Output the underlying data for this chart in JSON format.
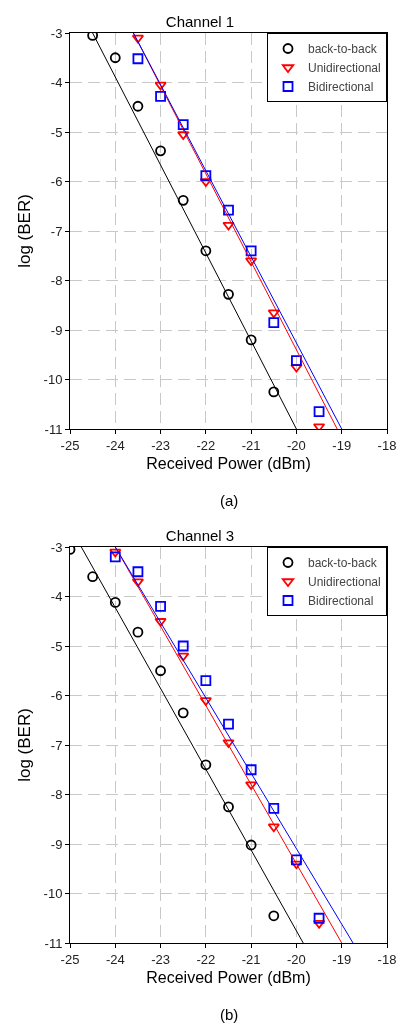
{
  "chart_data": [
    {
      "type": "scatter",
      "title": "Channel 1",
      "xlabel": "Received Power (dBm)",
      "ylabel": "log (BER)",
      "annotations": [
        "(a)"
      ],
      "xlim": [
        -25,
        -18
      ],
      "xticks": [
        -25,
        -24,
        -23,
        -22,
        -21,
        -20,
        -19,
        -18
      ],
      "ylim": [
        -11,
        -3
      ],
      "yticks": [
        -11,
        -10,
        -9,
        -8,
        -7,
        -6,
        -5,
        -4,
        -3
      ],
      "grid": true,
      "legend": "top right",
      "series": [
        {
          "name": "back-to-back",
          "color": "#000000",
          "marker": "circle",
          "x": [
            -24.5,
            -24,
            -23.5,
            -23,
            -22.5,
            -22,
            -21.5,
            -21,
            -20.5
          ],
          "values": [
            -3.05,
            -3.5,
            -4.48,
            -5.38,
            -6.38,
            -7.4,
            -8.28,
            -9.2,
            -10.25
          ]
        },
        {
          "name": "Unidirectional",
          "color": "#ff0000",
          "marker": "triangle",
          "x": [
            -23.5,
            -23,
            -22.5,
            -22,
            -21.5,
            -21,
            -20.5,
            -20,
            -19.5
          ],
          "values": [
            -3.1,
            -4.05,
            -5.05,
            -6.0,
            -6.88,
            -7.6,
            -8.65,
            -9.75,
            -10.95
          ]
        },
        {
          "name": "Bidirectional",
          "color": "#0000ff",
          "marker": "square",
          "x": [
            -23.5,
            -23,
            -22.5,
            -22,
            -21.5,
            -21,
            -20.5,
            -20,
            -19.5
          ],
          "values": [
            -3.52,
            -4.28,
            -4.85,
            -5.88,
            -6.58,
            -7.4,
            -8.85,
            -9.62,
            -10.65
          ]
        },
        {
          "type": "line",
          "color": "#000000",
          "line_style": "solid",
          "x": [
            -24.5,
            -20
          ],
          "values": [
            -3,
            -11
          ]
        },
        {
          "type": "line",
          "color": "#ff0000",
          "line_style": "solid",
          "x": [
            -23.6,
            -19.1
          ],
          "values": [
            -3,
            -11
          ]
        },
        {
          "type": "line",
          "color": "#0000ff",
          "line_style": "solid",
          "x": [
            -23.6,
            -19
          ],
          "values": [
            -3,
            -11
          ]
        }
      ]
    },
    {
      "type": "scatter",
      "title": "Channel 3",
      "xlabel": "Received Power (dBm)",
      "ylabel": "log (BER)",
      "annotations": [
        "(b)"
      ],
      "xlim": [
        -25,
        -18
      ],
      "xticks": [
        -25,
        -24,
        -23,
        -22,
        -21,
        -20,
        -19,
        -18
      ],
      "ylim": [
        -11,
        -3
      ],
      "yticks": [
        -11,
        -10,
        -9,
        -8,
        -7,
        -6,
        -5,
        -4,
        -3
      ],
      "grid": true,
      "legend": "top right",
      "series": [
        {
          "name": "back-to-back",
          "color": "#000000",
          "marker": "circle",
          "x": [
            -25,
            -24.5,
            -24,
            -23.5,
            -23,
            -22.5,
            -22,
            -21.5,
            -21,
            -20.5
          ],
          "values": [
            -3.05,
            -3.6,
            -4.12,
            -4.72,
            -5.5,
            -6.35,
            -7.4,
            -8.25,
            -9.02,
            -10.45
          ]
        },
        {
          "name": "Unidirectional",
          "color": "#ff0000",
          "marker": "triangle",
          "x": [
            -24,
            -23.5,
            -23,
            -22.5,
            -22,
            -21.5,
            -21,
            -20.5,
            -20,
            -19.5
          ],
          "values": [
            -3.1,
            -3.7,
            -4.5,
            -5.2,
            -6.1,
            -6.95,
            -7.8,
            -8.65,
            -9.4,
            -10.6
          ]
        },
        {
          "name": "Bidirectional",
          "color": "#0000ff",
          "marker": "square",
          "x": [
            -24,
            -23.5,
            -23,
            -22.5,
            -22,
            -21.5,
            -21,
            -20.5,
            -20,
            -19.5
          ],
          "values": [
            -3.2,
            -3.5,
            -4.2,
            -5.0,
            -5.7,
            -6.58,
            -7.5,
            -8.28,
            -9.32,
            -10.5
          ]
        },
        {
          "type": "line",
          "color": "#000000",
          "line_style": "solid",
          "x": [
            -24.75,
            -19.85
          ],
          "values": [
            -3,
            -11
          ]
        },
        {
          "type": "line",
          "color": "#ff0000",
          "line_style": "solid",
          "x": [
            -24,
            -19
          ],
          "values": [
            -3,
            -11
          ]
        },
        {
          "type": "line",
          "color": "#0000ff",
          "line_style": "solid",
          "x": [
            -24,
            -18.75
          ],
          "values": [
            -3,
            -11
          ]
        }
      ]
    }
  ]
}
